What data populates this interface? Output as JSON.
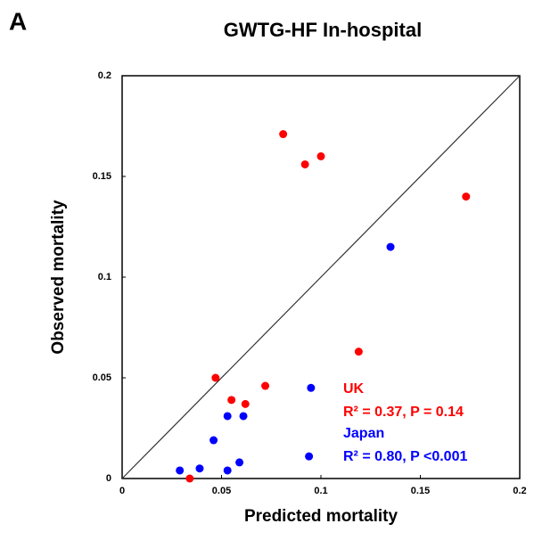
{
  "panel_label": "A",
  "chart_data": {
    "type": "scatter",
    "title": "GWTG-HF In-hospital",
    "x_label": "Predicted mortality",
    "y_label": "Observed mortality",
    "xlim": [
      0,
      0.2
    ],
    "ylim": [
      0,
      0.2
    ],
    "xticks": [
      0,
      0.05,
      0.1,
      0.15,
      0.2
    ],
    "yticks": [
      0,
      0.05,
      0.1,
      0.15,
      0.2
    ],
    "identity_line": true,
    "series": [
      {
        "name": "UK",
        "color": "#ff0000",
        "x": [
          0.081,
          0.092,
          0.1,
          0.173,
          0.119,
          0.047,
          0.072,
          0.055,
          0.062,
          0.034
        ],
        "values": [
          0.171,
          0.156,
          0.16,
          0.14,
          0.063,
          0.05,
          0.046,
          0.039,
          0.037,
          0.0
        ],
        "stats": "R² = 0.37, P = 0.14"
      },
      {
        "name": "Japan",
        "color": "#0000ff",
        "x": [
          0.135,
          0.095,
          0.053,
          0.061,
          0.046,
          0.094,
          0.059,
          0.029,
          0.039,
          0.053
        ],
        "values": [
          0.115,
          0.045,
          0.031,
          0.031,
          0.019,
          0.011,
          0.008,
          0.004,
          0.005,
          0.004
        ],
        "stats": "R² = 0.80, P <0.001"
      }
    ]
  }
}
